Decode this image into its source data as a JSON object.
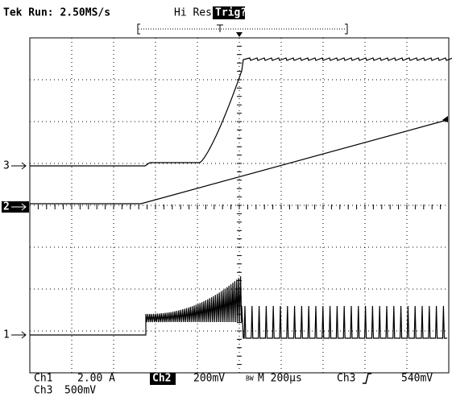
{
  "header": {
    "title": "Tek Run: 2.50MS/s",
    "mode": "Hi Res",
    "trigger_status": "Trig?"
  },
  "markers": [
    "3",
    "2",
    "1"
  ],
  "footer": {
    "ch1_label": "Ch1",
    "ch1_scale": "2.00 A",
    "ch2_label": "Ch2",
    "ch2_scale": "200mV",
    "bw": "BW",
    "timebase": "M 200µs",
    "trig_source": "Ch3",
    "trig_level": "540mV",
    "ch3_label": "Ch3",
    "ch3_scale": "500mV"
  }
}
